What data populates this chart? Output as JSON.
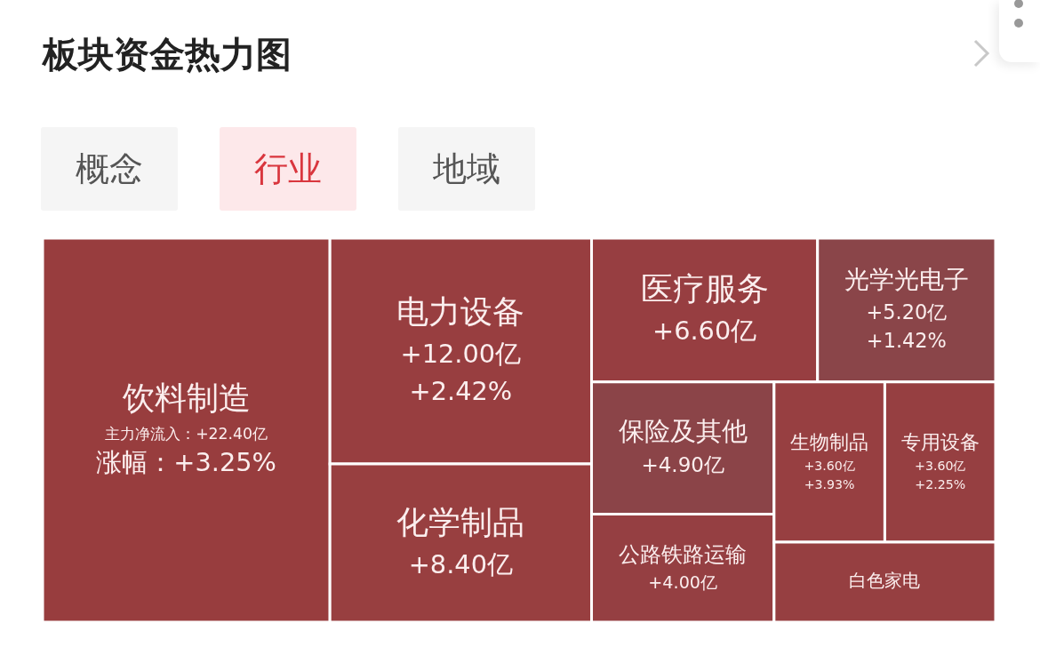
{
  "chart_data": {
    "type": "other",
    "title": "板块资金热力图",
    "annotations": [
      "概念",
      "行业",
      "地域"
    ],
    "categories": [
      "饮料制造",
      "电力设备",
      "化学制品",
      "医疗服务",
      "光学光电子",
      "保险及其他",
      "公路铁路运输",
      "生物制品",
      "专用设备",
      "白色家电"
    ],
    "series": [
      {
        "values": [
          22.4,
          12.0,
          8.4,
          6.6,
          5.2,
          4.9,
          4.0,
          3.6,
          3.6,
          null
        ],
        "value_labels": [
          "主力净流入：+22.40亿",
          "+12.00亿",
          "+8.40亿",
          "+6.60亿",
          "+5.20亿",
          "+4.90亿",
          "+4.00亿",
          "+3.60亿",
          "+3.60亿",
          null
        ],
        "colors": [
          "#983d3e",
          "#983e40",
          "#983f40",
          "#973e41",
          "#8a4549",
          "#8b4448",
          "#953f42",
          "#973f41",
          "#963f41",
          "#963f41"
        ]
      },
      {
        "values": [
          3.25,
          2.42,
          null,
          null,
          1.42,
          null,
          null,
          3.93,
          2.25,
          null
        ],
        "value_labels": [
          "涨幅：+3.25%",
          "+2.42%",
          null,
          null,
          "+1.42%",
          null,
          null,
          "+3.93%",
          "+2.25%",
          null
        ]
      }
    ]
  }
}
